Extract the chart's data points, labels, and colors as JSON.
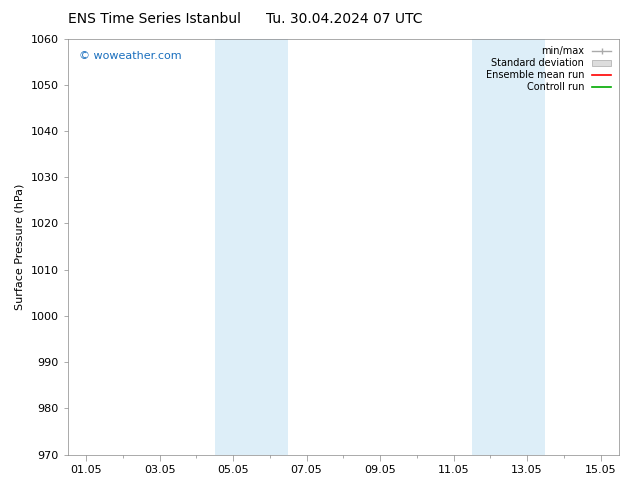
{
  "title_left": "ENS Time Series Istanbul",
  "title_right": "Tu. 30.04.2024 07 UTC",
  "ylabel": "Surface Pressure (hPa)",
  "ylim": [
    970,
    1060
  ],
  "yticks": [
    970,
    980,
    990,
    1000,
    1010,
    1020,
    1030,
    1040,
    1050,
    1060
  ],
  "xtick_labels": [
    "01.05",
    "03.05",
    "05.05",
    "07.05",
    "09.05",
    "11.05",
    "13.05",
    "15.05"
  ],
  "xtick_positions": [
    0,
    2,
    4,
    6,
    8,
    10,
    12,
    14
  ],
  "xlim": [
    -0.5,
    14.5
  ],
  "shaded_bands": [
    {
      "x_start": 3.5,
      "x_end": 5.5
    },
    {
      "x_start": 10.5,
      "x_end": 12.5
    }
  ],
  "shade_color": "#ddeef8",
  "watermark": "© woweather.com",
  "watermark_color": "#1a6fbe",
  "background_color": "#ffffff",
  "spine_color": "#888888",
  "title_fontsize": 10,
  "axis_fontsize": 8,
  "tick_fontsize": 8
}
